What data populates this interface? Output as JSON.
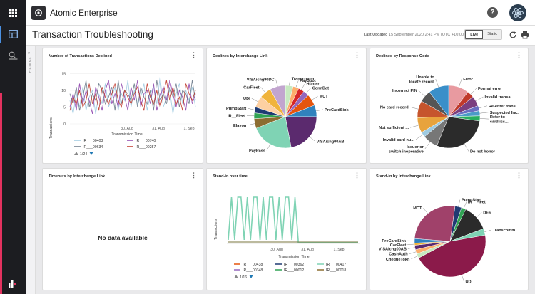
{
  "app": {
    "name": "Atomic Enterprise"
  },
  "page": {
    "title": "Transaction Troubleshooting",
    "last_updated_label": "Last Updated",
    "last_updated_value": "15 September 2020 2:41 PM (UTC +10:00)",
    "modes": [
      "Live",
      "Static"
    ],
    "active_mode": "Live",
    "filters_label": "FILTERS"
  },
  "icons": {
    "rail": [
      "grid-icon",
      "dashboard-icon",
      "search-list-icon",
      "logo-mark-icon"
    ],
    "topbar": [
      "help-icon",
      "avatar-icon",
      "refresh-icon",
      "print-icon"
    ]
  },
  "colors": {
    "rail": "#1c1d21",
    "accent": "#e3325f",
    "link": "#1f78b4"
  },
  "panels": {
    "declined": {
      "title": "Number of Transactions Declined",
      "pager": "1/24",
      "chart_data": {
        "type": "line",
        "ylabel": "Transactions",
        "xlabel": "Transmission Time",
        "yticks": [
          0,
          5,
          10,
          15
        ],
        "ylim": [
          0,
          17
        ],
        "xticks": [
          "30. Aug",
          "31. Aug",
          "1. Sep"
        ],
        "series": [
          {
            "name": "IR___00403",
            "color": "#9ecae1",
            "values": [
              7,
              3,
              9,
              5,
              11,
              4,
              8,
              10,
              3,
              9,
              6,
              12,
              5,
              8,
              11,
              4,
              9,
              7,
              13,
              5,
              10,
              6,
              8,
              12,
              4,
              9,
              11,
              6,
              14,
              5,
              8,
              10,
              3,
              9,
              12,
              6,
              10,
              7,
              11,
              5
            ]
          },
          {
            "name": "IR___00740",
            "color": "#8e44ad",
            "values": [
              5,
              9,
              4,
              12,
              6,
              10,
              7,
              3,
              11,
              8,
              4,
              10,
              13,
              6,
              9,
              5,
              12,
              8,
              4,
              11,
              7,
              13,
              5,
              9,
              10,
              6,
              12,
              4,
              8,
              11,
              7,
              13,
              9,
              5,
              10,
              8,
              4,
              12,
              6,
              9
            ]
          },
          {
            "name": "IR___00634",
            "color": "#6c7a89",
            "values": [
              9,
              6,
              11,
              4,
              8,
              13,
              5,
              9,
              7,
              12,
              10,
              6,
              8,
              11,
              4,
              13,
              6,
              10,
              9,
              7,
              12,
              5,
              11,
              8,
              6,
              10,
              4,
              13,
              7,
              9,
              6,
              11,
              8,
              12,
              5,
              10,
              9,
              6,
              13,
              7
            ]
          },
          {
            "name": "IR___00257",
            "color": "#c0392b",
            "values": [
              4,
              8,
              6,
              10,
              5,
              7,
              12,
              6,
              9,
              4,
              11,
              8,
              6,
              9,
              12,
              7,
              5,
              10,
              8,
              6,
              9,
              11,
              7,
              4,
              12,
              8,
              6,
              10,
              5,
              9,
              13,
              7,
              11,
              6,
              8,
              4,
              12,
              9,
              7,
              10
            ]
          }
        ]
      }
    },
    "interchange": {
      "title": "Declines by Interchange Link",
      "chart_data": {
        "type": "pie",
        "slices": [
          {
            "label": "Transcomm",
            "value": 4,
            "color": "#c7e9c0"
          },
          {
            "label": "PaySpot",
            "value": 3,
            "color": "#fdae6b"
          },
          {
            "label": "Hunter",
            "value": 3,
            "color": "#d62728"
          },
          {
            "label": "ConnDat",
            "value": 3,
            "color": "#9467bd"
          },
          {
            "label": "MCT",
            "value": 6,
            "color": "#e6550d"
          },
          {
            "label": "PreCardSink",
            "value": 6,
            "color": "#3182bd"
          },
          {
            "label": "VISAichg00AB",
            "value": 22,
            "color": "#5b2a6e"
          },
          {
            "label": "PayPass",
            "value": 22,
            "color": "#7fd3b4"
          },
          {
            "label": "Elavon",
            "value": 5,
            "color": "#8c6d31"
          },
          {
            "label": "IR__Fleet",
            "value": 3,
            "color": "#31a354"
          },
          {
            "label": "PumpStart",
            "value": 3,
            "color": "#1f3b73"
          },
          {
            "label": "UDI",
            "value": 6,
            "color": "#fdd0a2"
          },
          {
            "label": "CarFleet",
            "value": 6,
            "color": "#f0b43c"
          },
          {
            "label": "VISAichg90DC",
            "value": 8,
            "color": "#c2a5cf"
          }
        ]
      }
    },
    "response": {
      "title": "Declines by Response Code",
      "chart_data": {
        "type": "pie",
        "slices": [
          {
            "label": "Error",
            "value": 12,
            "color": "#e89aa0"
          },
          {
            "label": "Format error",
            "value": 4,
            "color": "#c0392b"
          },
          {
            "label": "Invalid transa...",
            "value": 6,
            "color": "#7b3f7f"
          },
          {
            "label": "Re-enter trans...",
            "value": 3,
            "color": "#6a6fc2"
          },
          {
            "label": "Suspected fra...",
            "value": 3,
            "color": "#4b9bc8"
          },
          {
            "label": "Refer to card iss...",
            "value": 3,
            "color": "#27ae60"
          },
          {
            "label": "Do not honor",
            "value": 33,
            "color": "#2b2b2b"
          },
          {
            "label": "Issuer or switch inoperative",
            "value": 9,
            "color": "#777777"
          },
          {
            "label": "Invalid card nu...",
            "value": 3,
            "color": "#9ecae1"
          },
          {
            "label": "Not sufficient ...",
            "value": 9,
            "color": "#e8a33d"
          },
          {
            "label": "No card record",
            "value": 10,
            "color": "#c6552d"
          },
          {
            "label": "Incorrect PIN",
            "value": 7,
            "color": "#555555"
          },
          {
            "label": "Unable to locate record",
            "value": 12,
            "color": "#3a8fc9"
          }
        ]
      }
    },
    "timeouts": {
      "title": "Timeouts by Interchange Link",
      "nodata": "No data available"
    },
    "standin_time": {
      "title": "Stand-in over time",
      "pager": "1/16",
      "chart_data": {
        "type": "line",
        "ylabel": "Transactions",
        "xlabel": "Transmission Time",
        "xticks": [
          "30. Aug",
          "31. Aug",
          "1. Sep"
        ],
        "series": [
          {
            "name": "IR___00438",
            "color": "#e6550d"
          },
          {
            "name": "IR___00362",
            "color": "#1f3b73"
          },
          {
            "name": "IR___00417",
            "color": "#7fd3b4"
          },
          {
            "name": "IR___00348",
            "color": "#9467bd"
          },
          {
            "name": "IR___00012",
            "color": "#31a354"
          },
          {
            "name": "IR___00018",
            "color": "#8c6d31"
          }
        ],
        "active_series": "IR___00417",
        "pattern": [
          0,
          1,
          0,
          1,
          1,
          0,
          1,
          0,
          1,
          1,
          0,
          1,
          0,
          1,
          1,
          0,
          1,
          0,
          1,
          1,
          0,
          1,
          0
        ]
      }
    },
    "standin_link": {
      "title": "Stand-in by Interchange Link",
      "chart_data": {
        "type": "pie",
        "slices": [
          {
            "label": "PumpStart",
            "value": 3,
            "color": "#1f3b73"
          },
          {
            "label": "IR__Fleet",
            "value": 2,
            "color": "#31a354"
          },
          {
            "label": "DER",
            "value": 12,
            "color": "#2b2b2b"
          },
          {
            "label": "Transcomm",
            "value": 3,
            "color": "#7fd3b4"
          },
          {
            "label": "UDI",
            "value": 45,
            "color": "#8b1a4a"
          },
          {
            "label": "ChequeTokn",
            "value": 2,
            "color": "#c7e9c0"
          },
          {
            "label": "CashAuth",
            "value": 2,
            "color": "#fdae6b"
          },
          {
            "label": "VISAichg00AB",
            "value": 2,
            "color": "#5b2a6e"
          },
          {
            "label": "CarFleet",
            "value": 1,
            "color": "#f0b43c"
          },
          {
            "label": "PreCardSink",
            "value": 2,
            "color": "#3182bd"
          },
          {
            "label": "MCT",
            "value": 26,
            "color": "#a0416a"
          }
        ]
      }
    }
  }
}
